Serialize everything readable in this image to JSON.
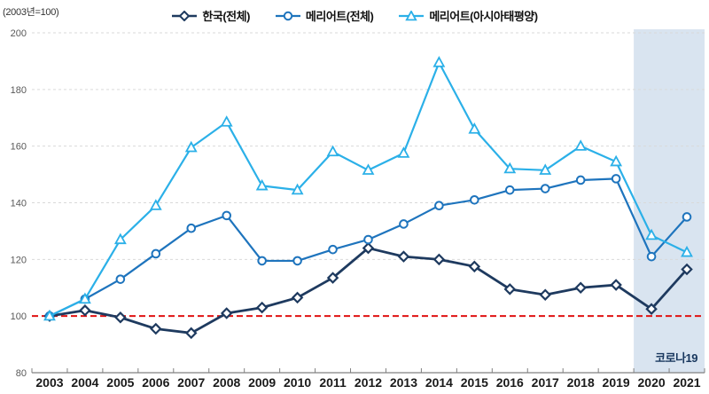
{
  "header": {
    "base_label": "(2003년=100)"
  },
  "chart_data": {
    "type": "line",
    "title": "",
    "xlabel": "",
    "ylabel": "",
    "categories": [
      "2003",
      "2004",
      "2005",
      "2006",
      "2007",
      "2008",
      "2009",
      "2010",
      "2011",
      "2012",
      "2013",
      "2014",
      "2015",
      "2016",
      "2017",
      "2018",
      "2019",
      "2020",
      "2021"
    ],
    "series": [
      {
        "name": "한국(전체)",
        "marker": "diamond",
        "color": "#1e3a5f",
        "values": [
          100,
          102,
          99.5,
          95.5,
          94,
          101,
          103,
          106.5,
          113.5,
          124,
          121,
          120,
          117.5,
          109.5,
          107.5,
          110,
          111,
          102.5,
          116.5
        ]
      },
      {
        "name": "메리어트(전체)",
        "marker": "circle",
        "color": "#1e74bd",
        "values": [
          100,
          106,
          113,
          122,
          131,
          135.5,
          119.5,
          119.5,
          123.5,
          127,
          132.5,
          139,
          141,
          144.5,
          145,
          148,
          148.5,
          121,
          135
        ]
      },
      {
        "name": "메리어트(아시아태평양)",
        "marker": "triangle",
        "color": "#2bb0e8",
        "values": [
          100,
          106,
          127,
          139,
          159.5,
          168.5,
          146,
          144.5,
          158,
          151.5,
          157.5,
          189.5,
          166,
          152,
          151.5,
          160,
          154.5,
          128.5,
          122.5
        ]
      }
    ],
    "ylim": [
      80,
      200
    ],
    "yticks": [
      80,
      100,
      120,
      140,
      160,
      180,
      200
    ],
    "baseline": {
      "value": 100,
      "color": "#e01212"
    },
    "annotation_region": {
      "label": "코로나19",
      "start_category": "2020",
      "fill": "#d9e4f0",
      "label_color": "#17365d"
    },
    "grid": "horizontal-dashed",
    "legend_position": "top",
    "axis_color": "#808080",
    "gridline_color": "#d9d9d9",
    "ytick_label_color": "#595959",
    "xtick_label_color": "#1a1a1a"
  }
}
